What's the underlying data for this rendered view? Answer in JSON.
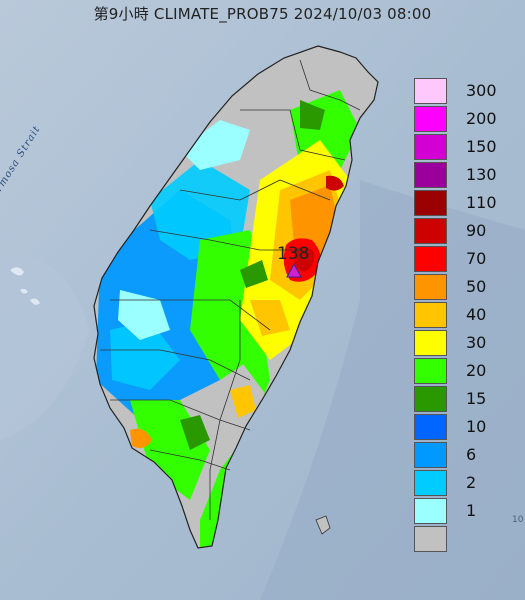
{
  "title": "第9小時  CLIMATE_PROB75 2024/10/03 08:00",
  "strait_label": "Formosa Strait",
  "peak": {
    "value_label": "138",
    "marker": "triangle-marker"
  },
  "edge_label": "10",
  "legend": [
    {
      "label": "300",
      "color": "#fec8fc"
    },
    {
      "label": "200",
      "color": "#fc00fd"
    },
    {
      "label": "150",
      "color": "#d300d4"
    },
    {
      "label": "130",
      "color": "#9c009c"
    },
    {
      "label": "110",
      "color": "#9a0100"
    },
    {
      "label": "90",
      "color": "#cc0100"
    },
    {
      "label": "70",
      "color": "#fd0000"
    },
    {
      "label": "50",
      "color": "#fe9500"
    },
    {
      "label": "40",
      "color": "#fec500"
    },
    {
      "label": "30",
      "color": "#fefe00"
    },
    {
      "label": "20",
      "color": "#33ff00"
    },
    {
      "label": "15",
      "color": "#2a9900"
    },
    {
      "label": "10",
      "color": "#0066ff"
    },
    {
      "label": "6",
      "color": "#0099ff"
    },
    {
      "label": "2",
      "color": "#00ccff"
    },
    {
      "label": "1",
      "color": "#9bffff"
    },
    {
      "label": "",
      "color": "#c1c1c1"
    }
  ]
}
